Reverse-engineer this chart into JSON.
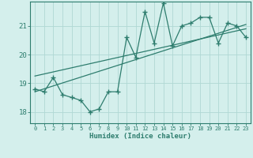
{
  "x_data": [
    0,
    1,
    2,
    3,
    4,
    5,
    6,
    7,
    8,
    9,
    10,
    11,
    12,
    13,
    14,
    15,
    16,
    17,
    18,
    19,
    20,
    21,
    22,
    23
  ],
  "y_data": [
    18.8,
    18.7,
    19.2,
    18.6,
    18.5,
    18.4,
    18.0,
    18.1,
    18.7,
    18.7,
    20.6,
    19.9,
    21.5,
    20.4,
    21.8,
    20.3,
    21.0,
    21.1,
    21.3,
    21.3,
    20.4,
    21.1,
    21.0,
    20.6
  ],
  "trend1_x": [
    0,
    23
  ],
  "trend1_y": [
    18.7,
    21.05
  ],
  "trend2_x": [
    0,
    23
  ],
  "trend2_y": [
    19.25,
    20.9
  ],
  "line_color": "#2e7d6e",
  "bg_color": "#d4efec",
  "grid_color": "#b0d8d4",
  "xlabel": "Humidex (Indice chaleur)",
  "yticks": [
    18,
    19,
    20,
    21
  ],
  "xticks": [
    0,
    1,
    2,
    3,
    4,
    5,
    6,
    7,
    8,
    9,
    10,
    11,
    12,
    13,
    14,
    15,
    16,
    17,
    18,
    19,
    20,
    21,
    22,
    23
  ],
  "xlim": [
    -0.5,
    23.5
  ],
  "ylim": [
    17.6,
    21.85
  ]
}
